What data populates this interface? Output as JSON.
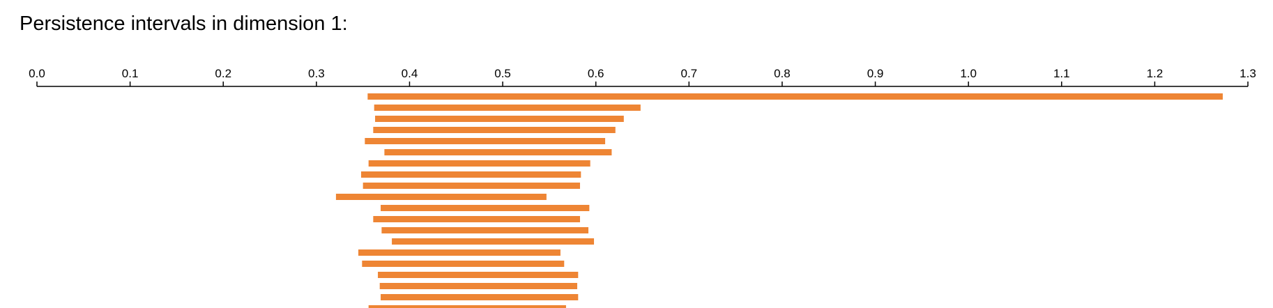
{
  "title": "Persistence intervals in dimension 1:",
  "chart_data": {
    "type": "bar",
    "orientation": "horizontal-intervals",
    "x_ticks": [
      "0.0",
      "0.1",
      "0.2",
      "0.3",
      "0.4",
      "0.5",
      "0.6",
      "0.7",
      "0.8",
      "0.9",
      "1.0",
      "1.1",
      "1.2",
      "1.3"
    ],
    "xlim": [
      0,
      1.3
    ],
    "axis_position": "top",
    "grid": false,
    "bar_color": "#ee8534",
    "intervals": [
      [
        0.355,
        1.273
      ],
      [
        0.362,
        0.648
      ],
      [
        0.363,
        0.63
      ],
      [
        0.361,
        0.621
      ],
      [
        0.352,
        0.61
      ],
      [
        0.373,
        0.617
      ],
      [
        0.356,
        0.594
      ],
      [
        0.348,
        0.584
      ],
      [
        0.35,
        0.583
      ],
      [
        0.321,
        0.547
      ],
      [
        0.369,
        0.593
      ],
      [
        0.361,
        0.583
      ],
      [
        0.37,
        0.592
      ],
      [
        0.381,
        0.598
      ],
      [
        0.345,
        0.562
      ],
      [
        0.349,
        0.566
      ],
      [
        0.366,
        0.581
      ],
      [
        0.368,
        0.58
      ],
      [
        0.369,
        0.581
      ],
      [
        0.356,
        0.568
      ]
    ]
  }
}
